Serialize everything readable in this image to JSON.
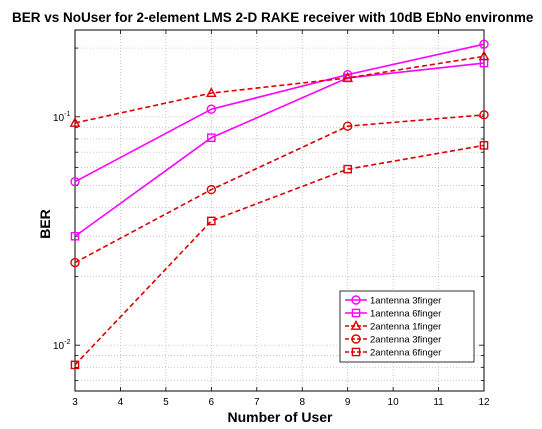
{
  "chart_data": {
    "type": "line",
    "title": "BER vs NoUser for 2-element LMS 2-D RAKE receiver with 10dB EbNo environme",
    "xlabel": "Number of User",
    "ylabel": "BER",
    "x": [
      3,
      6,
      9,
      12
    ],
    "xlim": [
      3,
      12
    ],
    "ylim": [
      0.0063,
      0.24
    ],
    "yscale": "log",
    "grid": true,
    "legend_position": "bottom-right",
    "x_ticks": [
      "3",
      "4",
      "5",
      "6",
      "7",
      "8",
      "9",
      "10",
      "11",
      "12"
    ],
    "y_ticks": [
      {
        "value": 0.01,
        "base": "10",
        "exp": "-2"
      },
      {
        "value": 0.1,
        "base": "10",
        "exp": "-1"
      }
    ],
    "series": [
      {
        "name": "1antenna 3finger",
        "values": [
          0.052,
          0.108,
          0.153,
          0.208
        ],
        "color": "#ff00ff",
        "marker": "circle",
        "dash": "solid"
      },
      {
        "name": "1antenna 6finger",
        "values": [
          0.03,
          0.081,
          0.148,
          0.172
        ],
        "color": "#ff00ff",
        "marker": "square",
        "dash": "solid"
      },
      {
        "name": "2antenna 1finger",
        "values": [
          0.094,
          0.127,
          0.148,
          0.184
        ],
        "color": "#dd0000",
        "marker": "triangle",
        "dash": "dashed"
      },
      {
        "name": "2antenna 3finger",
        "values": [
          0.023,
          0.048,
          0.091,
          0.102
        ],
        "color": "#dd0000",
        "marker": "circle",
        "dash": "dashed"
      },
      {
        "name": "2antenna 6finger",
        "values": [
          0.0082,
          0.035,
          0.059,
          0.075
        ],
        "color": "#dd0000",
        "marker": "square",
        "dash": "dashed"
      }
    ]
  }
}
